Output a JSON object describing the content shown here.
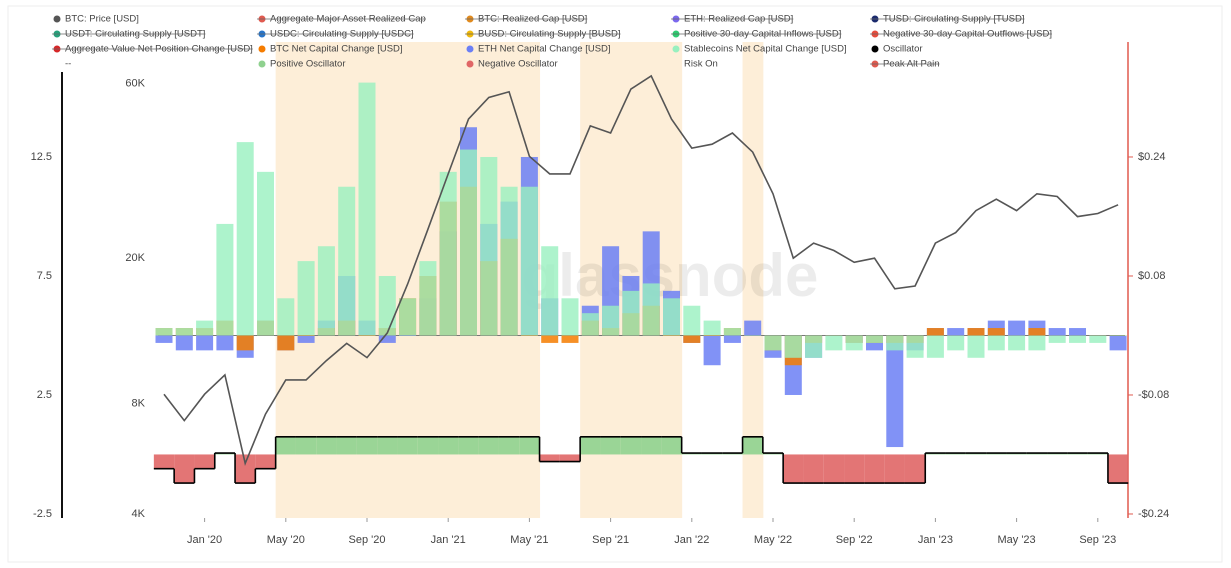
{
  "chart_data": {
    "type": "line",
    "watermark": "glassnode",
    "x": [
      "2019-11",
      "2019-12",
      "2020-01",
      "2020-02",
      "2020-03",
      "2020-04",
      "2020-05",
      "2020-06",
      "2020-07",
      "2020-08",
      "2020-09",
      "2020-10",
      "2020-11",
      "2020-12",
      "2021-01",
      "2021-02",
      "2021-03",
      "2021-04",
      "2021-05",
      "2021-06",
      "2021-07",
      "2021-08",
      "2021-09",
      "2021-10",
      "2021-11",
      "2021-12",
      "2022-01",
      "2022-02",
      "2022-03",
      "2022-04",
      "2022-05",
      "2022-06",
      "2022-07",
      "2022-08",
      "2022-09",
      "2022-10",
      "2022-11",
      "2022-12",
      "2023-01",
      "2023-02",
      "2023-03",
      "2023-04",
      "2023-05",
      "2023-06",
      "2023-07",
      "2023-08",
      "2023-09",
      "2023-10"
    ],
    "xticks": [
      {
        "value": "2020-01",
        "label": "Jan '20"
      },
      {
        "value": "2020-05",
        "label": "May '20"
      },
      {
        "value": "2020-09",
        "label": "Sep '20"
      },
      {
        "value": "2021-01",
        "label": "Jan '21"
      },
      {
        "value": "2021-05",
        "label": "May '21"
      },
      {
        "value": "2021-09",
        "label": "Sep '21"
      },
      {
        "value": "2022-01",
        "label": "Jan '22"
      },
      {
        "value": "2022-05",
        "label": "May '22"
      },
      {
        "value": "2022-09",
        "label": "Sep '22"
      },
      {
        "value": "2023-01",
        "label": "Jan '23"
      },
      {
        "value": "2023-05",
        "label": "May '23"
      },
      {
        "value": "2023-09",
        "label": "Sep '23"
      }
    ],
    "log_y": true,
    "ylim": [
      3900,
      78000
    ],
    "yticks": [
      {
        "value": 4000,
        "label": "4K"
      },
      {
        "value": 8000,
        "label": "8K"
      },
      {
        "value": 20000,
        "label": "20K"
      },
      {
        "value": 60000,
        "label": "60K"
      }
    ],
    "y2lim": [
      -0.2454,
      0.3946
    ],
    "y2ticks": [
      {
        "value": -0.24,
        "label": "-$0.24"
      },
      {
        "value": -0.08,
        "label": "-$0.08"
      },
      {
        "value": 0.08,
        "label": "$0.08"
      },
      {
        "value": 0.24,
        "label": "$0.24"
      }
    ],
    "y3lim": [
      -2.67,
      17.33
    ],
    "y3ticks": [
      -2.5,
      2.5,
      7.5,
      12.5
    ],
    "series": [
      {
        "name": "BTC: Price [USD]",
        "color": "#555555",
        "type": "line",
        "axis": "y",
        "values": [
          8500,
          7200,
          8500,
          9600,
          5500,
          7500,
          9300,
          9300,
          10500,
          11700,
          10700,
          12500,
          17000,
          24000,
          34000,
          48000,
          55000,
          57000,
          38000,
          34000,
          34000,
          46000,
          44000,
          58000,
          63000,
          48000,
          40000,
          41000,
          44000,
          39000,
          30000,
          20000,
          22000,
          21000,
          19500,
          20000,
          16500,
          16800,
          22000,
          23500,
          27000,
          29000,
          27000,
          30000,
          29500,
          26000,
          26500,
          28000
        ]
      },
      {
        "name": "Aggregate Major Asset Realized Cap",
        "color": "#e05a4f",
        "hidden": true
      },
      {
        "name": "BTC: Realized Cap [USD]",
        "color": "#e08a1e",
        "hidden": true
      },
      {
        "name": "ETH: Realized Cap [USD]",
        "color": "#7b68ee",
        "hidden": true
      },
      {
        "name": "TUSD: Circulating Supply [TUSD]",
        "color": "#1a2a6c",
        "hidden": true
      },
      {
        "name": "USDT: Circulating Supply [USDT]",
        "color": "#26a17b",
        "hidden": true
      },
      {
        "name": "USDC: Circulating Supply [USDC]",
        "color": "#2775ca",
        "hidden": true
      },
      {
        "name": "BUSD: Circulating Supply [BUSD]",
        "color": "#f0b90b",
        "hidden": true
      },
      {
        "name": "Positive 30-day Capital Inflows [USD]",
        "color": "#2ecc71",
        "hidden": true
      },
      {
        "name": "Negative 30-day Capital Outflows [USD]",
        "color": "#e74c3c",
        "hidden": true
      },
      {
        "name": "Aggregate Value Net Position Change [USD]",
        "color": "#d62728",
        "hidden": true
      },
      {
        "name": "BTC Net Capital Change [USD]",
        "color": "#f57c00",
        "type": "bar",
        "axis": "y2",
        "values": [
          0.01,
          0.01,
          0.01,
          0.02,
          -0.02,
          0.02,
          -0.02,
          0,
          0.01,
          0.02,
          0,
          0.01,
          0.05,
          0.08,
          0.18,
          0.2,
          0.1,
          0.13,
          0,
          -0.01,
          -0.01,
          0.02,
          0.01,
          0.03,
          0.04,
          0,
          -0.01,
          0,
          0.01,
          0,
          -0.02,
          -0.04,
          -0.01,
          0,
          -0.01,
          -0.01,
          -0.01,
          -0.01,
          0.01,
          0,
          0.01,
          0.01,
          0,
          0.01,
          0,
          0,
          0,
          0
        ]
      },
      {
        "name": "ETH Net Capital Change [USD]",
        "color": "#6b7ff5",
        "type": "bar",
        "axis": "y2",
        "values": [
          -0.01,
          -0.02,
          -0.02,
          -0.02,
          -0.03,
          0.02,
          -0.02,
          -0.01,
          0.02,
          0.08,
          0.02,
          -0.01,
          0,
          0.05,
          0.14,
          0.28,
          0.15,
          0.18,
          0.24,
          0.05,
          0,
          0.04,
          0.12,
          0.08,
          0.14,
          0.06,
          -0.01,
          -0.04,
          -0.01,
          0.02,
          -0.03,
          -0.08,
          -0.03,
          0,
          -0.01,
          -0.02,
          -0.15,
          -0.02,
          0.01,
          0.01,
          0.01,
          0.02,
          0.02,
          0.02,
          0.01,
          0.01,
          0,
          -0.02
        ]
      },
      {
        "name": "Stablecoins Net Capital Change [USD]",
        "color": "#98f0bf",
        "type": "bar",
        "axis": "y2",
        "values": [
          0.01,
          0.01,
          0.02,
          0.15,
          0.26,
          0.22,
          0.05,
          0.1,
          0.12,
          0.2,
          0.34,
          0.08,
          0.05,
          0.1,
          0.22,
          0.25,
          0.24,
          0.2,
          0.2,
          0.12,
          0.05,
          0.03,
          0.04,
          0.06,
          0.07,
          0.05,
          0.04,
          0.02,
          0.01,
          0,
          -0.02,
          -0.03,
          -0.03,
          -0.02,
          -0.02,
          -0.01,
          -0.02,
          -0.03,
          -0.03,
          -0.02,
          -0.03,
          -0.02,
          -0.02,
          -0.02,
          -0.01,
          -0.01,
          -0.01,
          0
        ]
      },
      {
        "name": "Oscillator",
        "color": "#000000",
        "type": "step",
        "axis": "y3",
        "values": [
          -0.6,
          -1.2,
          -0.6,
          0.06,
          -1.2,
          -0.6,
          0.74,
          0.74,
          0.74,
          0.74,
          0.74,
          0.74,
          0.74,
          0.74,
          0.74,
          0.74,
          0.74,
          0.74,
          0.74,
          -0.3,
          -0.3,
          0.74,
          0.74,
          0.74,
          0.74,
          0.74,
          0.06,
          0.06,
          0.06,
          0.74,
          0.06,
          -1.2,
          -1.2,
          -1.2,
          -1.2,
          -1.2,
          -1.2,
          -1.2,
          0.06,
          0.06,
          0.06,
          0.06,
          0.06,
          0.06,
          0.06,
          0.06,
          0.06,
          -1.2
        ]
      },
      {
        "name": "--"
      },
      {
        "name": "Positive Oscillator",
        "color": "#8fd18f"
      },
      {
        "name": "Negative Oscillator",
        "color": "#e06666"
      },
      {
        "name": "Risk On",
        "color": "#fdeed8"
      },
      {
        "name": "Peak Alt Pain",
        "color": "#e05a4f",
        "hidden": true
      }
    ]
  }
}
